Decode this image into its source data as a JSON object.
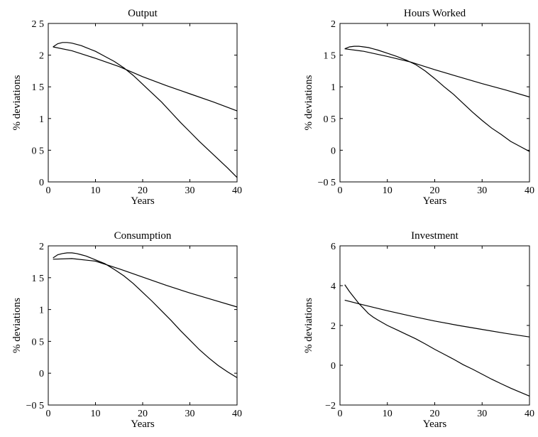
{
  "chart_data": [
    {
      "type": "line",
      "title": "Output",
      "xlabel": "Years",
      "ylabel": "% deviations",
      "xlim": [
        0,
        40
      ],
      "ylim": [
        0,
        2.5
      ],
      "xticks": [
        "0",
        "10",
        "20",
        "30",
        "40"
      ],
      "xtick_values": [
        0,
        10,
        20,
        30,
        40
      ],
      "yticks": [
        "0",
        "0 5",
        "1",
        "1 5",
        "2",
        "2 5"
      ],
      "ytick_values": [
        0,
        0.5,
        1,
        1.5,
        2,
        2.5
      ],
      "grid": false,
      "series": [
        {
          "x": [
            1,
            2,
            3,
            4,
            5,
            6,
            7,
            8,
            10,
            12,
            14,
            16,
            18,
            20,
            22,
            24,
            26,
            28,
            30,
            32,
            34,
            36,
            38,
            40
          ],
          "values": [
            2.13,
            2.18,
            2.2,
            2.2,
            2.19,
            2.17,
            2.15,
            2.12,
            2.06,
            1.98,
            1.9,
            1.8,
            1.68,
            1.54,
            1.4,
            1.26,
            1.1,
            0.94,
            0.79,
            0.64,
            0.5,
            0.36,
            0.22,
            0.07
          ]
        },
        {
          "x": [
            1,
            5,
            10,
            15,
            20,
            25,
            30,
            35,
            40
          ],
          "values": [
            2.13,
            2.07,
            1.95,
            1.82,
            1.66,
            1.52,
            1.39,
            1.26,
            1.12
          ]
        }
      ]
    },
    {
      "type": "line",
      "title": "Hours Worked",
      "xlabel": "Years",
      "ylabel": "% deviations",
      "xlim": [
        0,
        40
      ],
      "ylim": [
        -0.5,
        2
      ],
      "xticks": [
        "0",
        "10",
        "20",
        "30",
        "40"
      ],
      "xtick_values": [
        0,
        10,
        20,
        30,
        40
      ],
      "yticks": [
        "−0 5",
        "0",
        "0 5",
        "1",
        "1 5",
        "2"
      ],
      "ytick_values": [
        -0.5,
        0,
        0.5,
        1,
        1.5,
        2
      ],
      "grid": false,
      "series": [
        {
          "x": [
            1,
            2,
            3,
            4,
            5,
            6,
            7,
            8,
            10,
            12,
            14,
            16,
            18,
            20,
            22,
            24,
            26,
            28,
            30,
            32,
            34,
            36,
            38,
            40
          ],
          "values": [
            1.6,
            1.63,
            1.64,
            1.64,
            1.63,
            1.62,
            1.6,
            1.58,
            1.53,
            1.48,
            1.42,
            1.35,
            1.25,
            1.13,
            1.0,
            0.88,
            0.74,
            0.6,
            0.47,
            0.35,
            0.25,
            0.14,
            0.06,
            -0.02
          ]
        },
        {
          "x": [
            1,
            5,
            10,
            15,
            20,
            25,
            30,
            35,
            40
          ],
          "values": [
            1.6,
            1.56,
            1.48,
            1.39,
            1.27,
            1.16,
            1.05,
            0.95,
            0.84
          ]
        }
      ]
    },
    {
      "type": "line",
      "title": "Consumption",
      "xlabel": "Years",
      "ylabel": "% deviations",
      "xlim": [
        0,
        40
      ],
      "ylim": [
        -0.5,
        2
      ],
      "xticks": [
        "0",
        "10",
        "20",
        "30",
        "40"
      ],
      "xtick_values": [
        0,
        10,
        20,
        30,
        40
      ],
      "yticks": [
        "−0 5",
        "0",
        "0 5",
        "1",
        "1 5",
        "2"
      ],
      "ytick_values": [
        -0.5,
        0,
        0.5,
        1,
        1.5,
        2
      ],
      "grid": false,
      "series": [
        {
          "x": [
            1,
            2,
            3,
            4,
            5,
            6,
            7,
            8,
            10,
            12,
            14,
            16,
            18,
            20,
            22,
            24,
            26,
            28,
            30,
            32,
            34,
            36,
            38,
            40
          ],
          "values": [
            1.81,
            1.86,
            1.88,
            1.89,
            1.89,
            1.88,
            1.86,
            1.84,
            1.78,
            1.72,
            1.63,
            1.53,
            1.41,
            1.27,
            1.13,
            0.98,
            0.83,
            0.67,
            0.52,
            0.37,
            0.24,
            0.12,
            0.02,
            -0.07
          ]
        },
        {
          "x": [
            1,
            5,
            10,
            15,
            20,
            25,
            30,
            35,
            40
          ],
          "values": [
            1.79,
            1.8,
            1.76,
            1.64,
            1.51,
            1.38,
            1.26,
            1.15,
            1.04
          ]
        }
      ]
    },
    {
      "type": "line",
      "title": "Investment",
      "xlabel": "Years",
      "ylabel": "% deviations",
      "xlim": [
        0,
        40
      ],
      "ylim": [
        -2,
        6
      ],
      "xticks": [
        "0",
        "10",
        "20",
        "30",
        "40"
      ],
      "xtick_values": [
        0,
        10,
        20,
        30,
        40
      ],
      "yticks": [
        "−2",
        "0",
        "2",
        "4",
        "6"
      ],
      "ytick_values": [
        -2,
        0,
        2,
        4,
        6
      ],
      "grid": false,
      "series": [
        {
          "x": [
            1,
            2,
            3,
            4,
            5,
            6,
            7,
            8,
            10,
            12,
            14,
            16,
            18,
            20,
            22,
            24,
            26,
            28,
            30,
            32,
            34,
            36,
            38,
            40
          ],
          "values": [
            4.05,
            3.7,
            3.4,
            3.1,
            2.85,
            2.6,
            2.42,
            2.27,
            2.0,
            1.78,
            1.55,
            1.33,
            1.07,
            0.8,
            0.55,
            0.3,
            0.03,
            -0.2,
            -0.45,
            -0.7,
            -0.93,
            -1.15,
            -1.35,
            -1.55
          ]
        },
        {
          "x": [
            1,
            5,
            10,
            15,
            20,
            25,
            30,
            35,
            40
          ],
          "values": [
            3.27,
            3.03,
            2.74,
            2.47,
            2.22,
            2.0,
            1.8,
            1.6,
            1.42
          ]
        }
      ]
    }
  ]
}
